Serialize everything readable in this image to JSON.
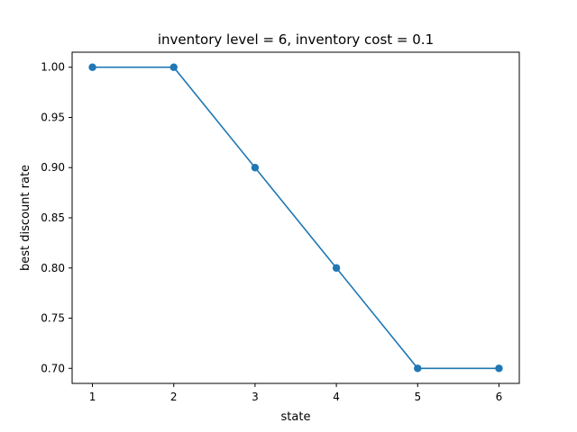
{
  "chart_data": {
    "type": "line",
    "title": "inventory level = 6, inventory cost = 0.1",
    "xlabel": "state",
    "ylabel": "best discount rate",
    "x": [
      1,
      2,
      3,
      4,
      5,
      6
    ],
    "series": [
      {
        "values": [
          1.0,
          1.0,
          0.9,
          0.8,
          0.7,
          0.7
        ],
        "color": "#1f77b4",
        "marker": "circle"
      }
    ],
    "xlim": [
      0.75,
      6.25
    ],
    "ylim": [
      0.685,
      1.015
    ],
    "xticks": [
      "1",
      "2",
      "3",
      "4",
      "5",
      "6"
    ],
    "yticks": [
      "0.70",
      "0.75",
      "0.80",
      "0.85",
      "0.90",
      "0.95",
      "1.00"
    ],
    "grid": false,
    "legend": "none"
  }
}
